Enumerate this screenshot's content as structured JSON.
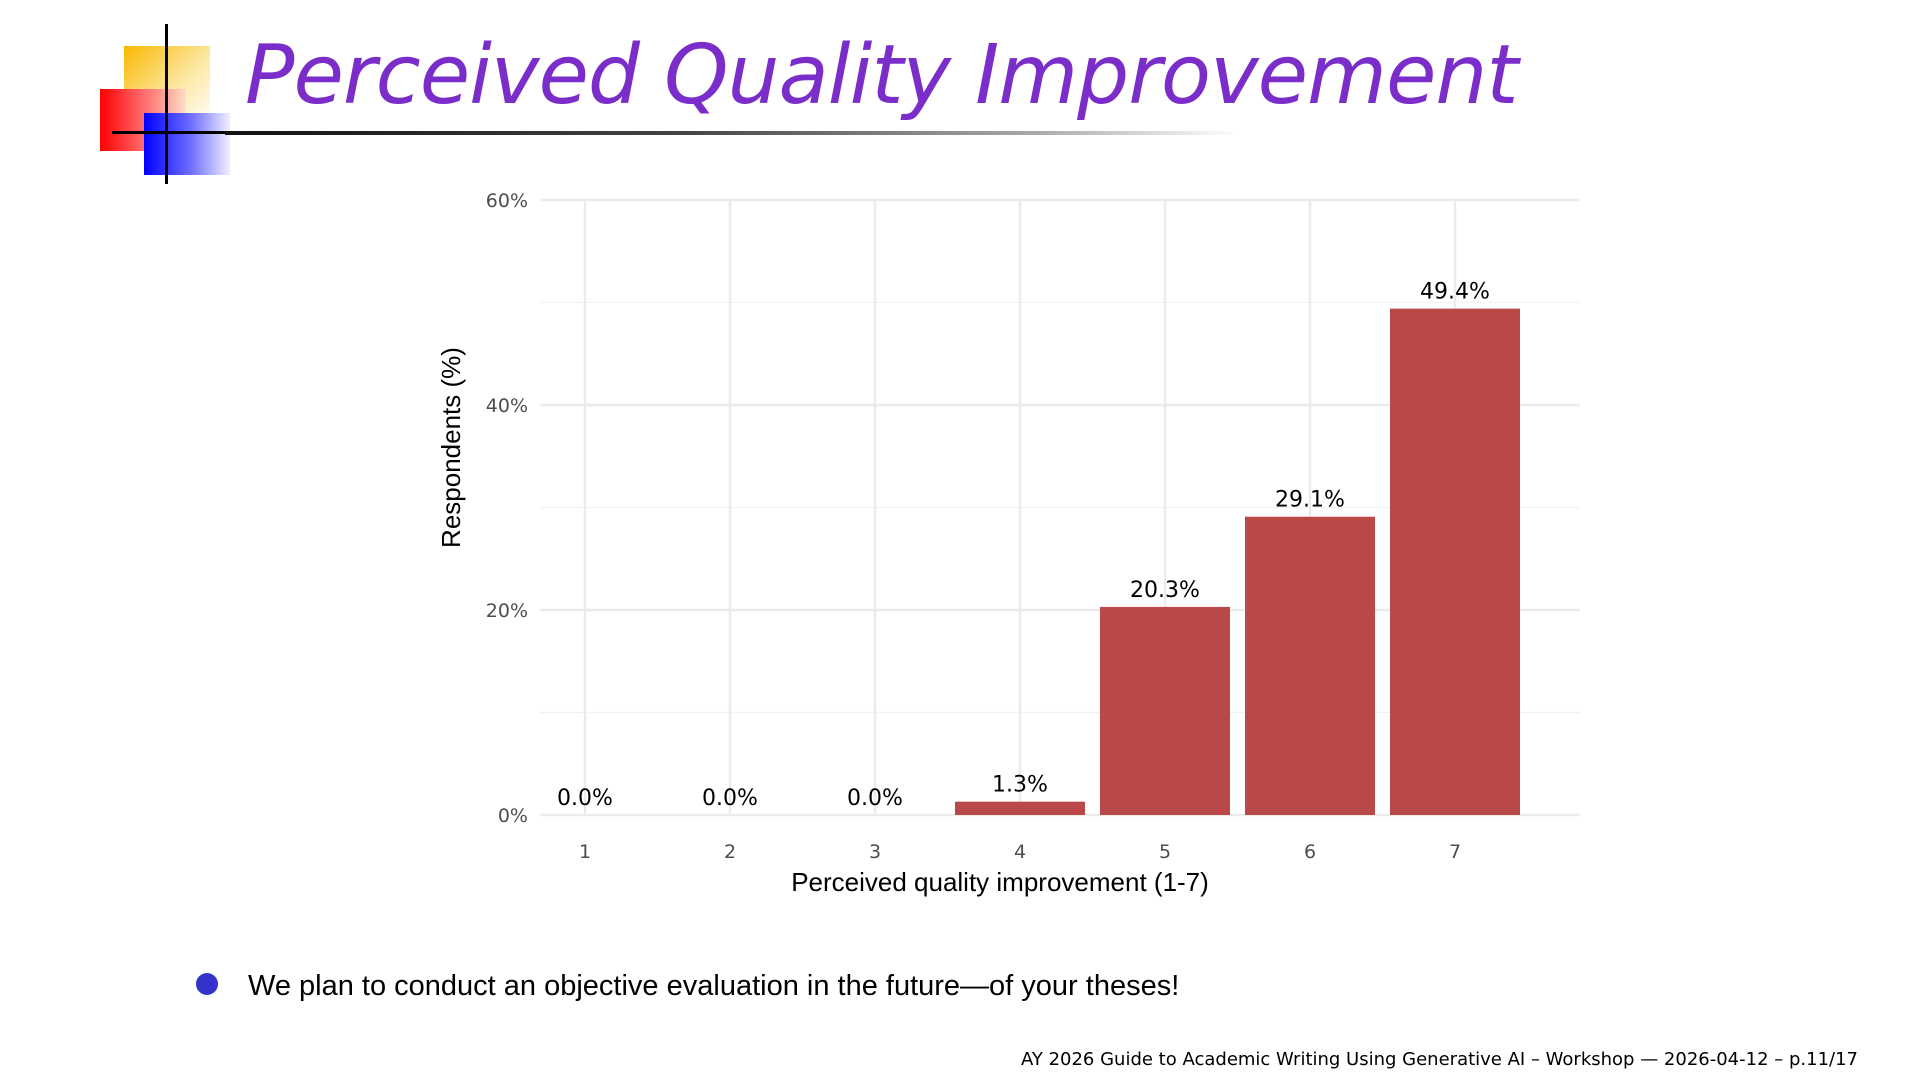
{
  "slide": {
    "title": "Perceived Quality Improvement",
    "bullet": "We plan to conduct an objective evaluation in the future—of your theses!",
    "footer": "AY 2026 Guide to Academic Writing Using Generative AI – Workshop — 2026-04-12 – p.11/17"
  },
  "colors": {
    "title": "#7a2dc8",
    "bar": "#bb4848",
    "bullet": "#3333cc",
    "grid": "#ebebeb"
  },
  "chart_data": {
    "type": "bar",
    "title": "",
    "xlabel": "Perceived quality improvement (1-7)",
    "ylabel": "Respondents (%)",
    "categories": [
      "1",
      "2",
      "3",
      "4",
      "5",
      "6",
      "7"
    ],
    "values": [
      0.0,
      0.0,
      0.0,
      1.3,
      20.3,
      29.1,
      49.4
    ],
    "data_labels": [
      "0.0%",
      "0.0%",
      "0.0%",
      "1.3%",
      "20.3%",
      "29.1%",
      "49.4%"
    ],
    "yticks": [
      0,
      20,
      40,
      60
    ],
    "ytick_labels": [
      "0%",
      "20%",
      "40%",
      "60%"
    ],
    "ylim": [
      0,
      60
    ],
    "grid": true,
    "legend": "none"
  }
}
